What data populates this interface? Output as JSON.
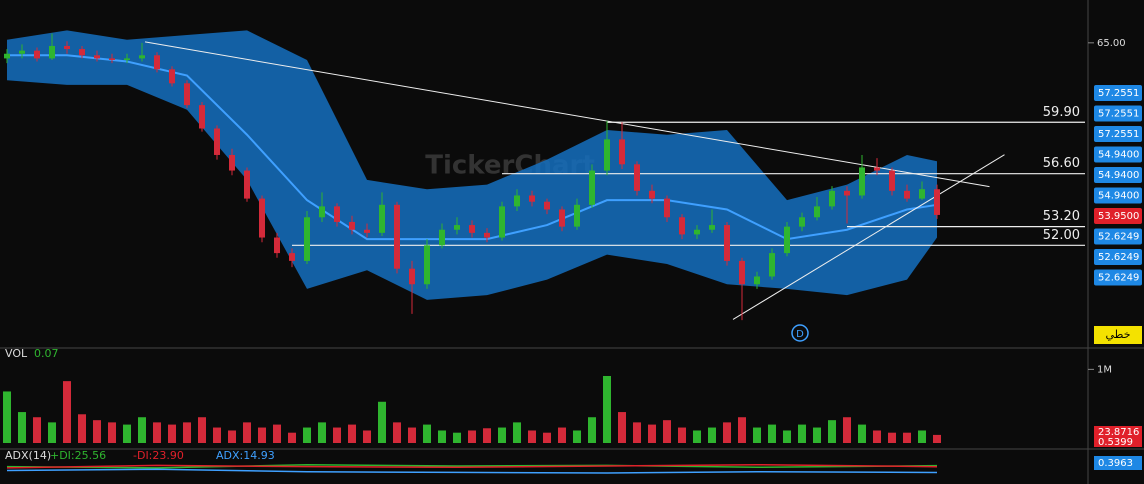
{
  "chart_data": [
    {
      "type": "candlestick",
      "watermark": "TickerChart",
      "ylim": [
        45.6,
        67.75
      ],
      "yticks": [
        {
          "value": 65,
          "label": "65.00"
        }
      ],
      "up_color": "#2fb52f",
      "down_color": "#d42a3a",
      "candles": [
        [
          64.0,
          64.6,
          63.7,
          64.3
        ],
        [
          64.3,
          64.9,
          64.0,
          64.5
        ],
        [
          64.5,
          64.7,
          63.8,
          64.0
        ],
        [
          64.0,
          65.6,
          63.9,
          64.8
        ],
        [
          64.8,
          65.1,
          64.3,
          64.6
        ],
        [
          64.6,
          64.8,
          64.0,
          64.2
        ],
        [
          64.2,
          64.5,
          63.8,
          64.0
        ],
        [
          64.0,
          64.3,
          63.7,
          63.9
        ],
        [
          63.9,
          64.3,
          63.7,
          64.0
        ],
        [
          64.0,
          65.0,
          63.8,
          64.2
        ],
        [
          64.2,
          64.4,
          63.1,
          63.3
        ],
        [
          63.3,
          63.5,
          62.2,
          62.4
        ],
        [
          62.4,
          62.6,
          60.8,
          61.0
        ],
        [
          61.0,
          61.2,
          59.3,
          59.5
        ],
        [
          59.5,
          59.7,
          57.5,
          57.8
        ],
        [
          57.8,
          58.2,
          56.5,
          56.8
        ],
        [
          56.8,
          57.0,
          54.8,
          55.0
        ],
        [
          55.0,
          55.2,
          52.2,
          52.5
        ],
        [
          52.5,
          52.8,
          51.2,
          51.5
        ],
        [
          51.5,
          51.8,
          50.6,
          51.0
        ],
        [
          51.0,
          54.2,
          50.8,
          53.8
        ],
        [
          53.8,
          55.4,
          53.5,
          54.5
        ],
        [
          54.5,
          54.7,
          53.2,
          53.5
        ],
        [
          53.5,
          53.9,
          52.7,
          53.0
        ],
        [
          53.0,
          53.4,
          52.5,
          52.8
        ],
        [
          52.8,
          55.4,
          52.6,
          54.6
        ],
        [
          54.6,
          54.8,
          50.2,
          50.5
        ],
        [
          50.5,
          51.0,
          47.6,
          49.5
        ],
        [
          49.5,
          52.4,
          49.2,
          52.0
        ],
        [
          52.0,
          53.4,
          51.8,
          53.0
        ],
        [
          53.0,
          53.8,
          52.7,
          53.3
        ],
        [
          53.3,
          53.6,
          52.5,
          52.8
        ],
        [
          52.8,
          53.1,
          52.2,
          52.5
        ],
        [
          52.5,
          54.8,
          52.3,
          54.5
        ],
        [
          54.5,
          55.6,
          54.2,
          55.2
        ],
        [
          55.2,
          55.5,
          54.5,
          54.8
        ],
        [
          54.8,
          55.0,
          54.0,
          54.3
        ],
        [
          54.3,
          54.5,
          52.9,
          53.2
        ],
        [
          53.2,
          55.0,
          53.0,
          54.6
        ],
        [
          54.6,
          57.2,
          54.4,
          56.8
        ],
        [
          56.8,
          60.0,
          56.5,
          58.8
        ],
        [
          58.8,
          59.9,
          56.9,
          57.2
        ],
        [
          57.2,
          57.4,
          55.2,
          55.5
        ],
        [
          55.5,
          55.9,
          54.7,
          55.0
        ],
        [
          55.0,
          55.2,
          53.5,
          53.8
        ],
        [
          53.8,
          54.0,
          52.4,
          52.7
        ],
        [
          52.7,
          53.3,
          52.4,
          53.0
        ],
        [
          53.0,
          54.3,
          52.8,
          53.3
        ],
        [
          53.3,
          53.5,
          50.7,
          51.0
        ],
        [
          51.0,
          51.2,
          47.2,
          49.5
        ],
        [
          49.5,
          50.3,
          49.2,
          50.0
        ],
        [
          50.0,
          51.8,
          49.8,
          51.5
        ],
        [
          51.5,
          53.5,
          51.3,
          53.2
        ],
        [
          53.2,
          54.1,
          52.9,
          53.8
        ],
        [
          53.8,
          55.1,
          53.6,
          54.5
        ],
        [
          54.5,
          55.8,
          54.3,
          55.5
        ],
        [
          55.5,
          55.8,
          53.4,
          55.2
        ],
        [
          55.2,
          57.8,
          55.0,
          57.0
        ],
        [
          57.0,
          57.6,
          56.5,
          56.8
        ],
        [
          56.8,
          57.0,
          55.2,
          55.5
        ],
        [
          55.5,
          55.9,
          54.8,
          55.0
        ],
        [
          55.0,
          56.1,
          54.9,
          55.6
        ],
        [
          55.6,
          55.9,
          53.7,
          53.95
        ]
      ],
      "bands": {
        "x": [
          0,
          4,
          8,
          12,
          16,
          20,
          24,
          28,
          32,
          36,
          40,
          44,
          48,
          52,
          56,
          60,
          62
        ],
        "upper": [
          65.2,
          65.8,
          65.2,
          65.5,
          65.8,
          63.9,
          56.2,
          55.6,
          55.9,
          57.5,
          59.4,
          59.1,
          59.4,
          54.9,
          55.9,
          57.8,
          57.4
        ],
        "middle": [
          64.2,
          64.2,
          63.8,
          62.9,
          59.1,
          54.9,
          52.4,
          52.4,
          52.4,
          53.3,
          54.9,
          54.9,
          54.3,
          52.4,
          53.0,
          54.3,
          54.6
        ],
        "lower": [
          62.6,
          62.3,
          62.3,
          60.7,
          56.2,
          49.2,
          50.4,
          48.5,
          48.8,
          49.8,
          51.4,
          50.8,
          49.5,
          49.2,
          48.8,
          49.8,
          52.5
        ],
        "fill_color": "#1570c0",
        "middle_color": "#3fa0ff"
      },
      "levels": [
        {
          "value": 59.9,
          "label": "59.90",
          "from": 40
        },
        {
          "value": 56.6,
          "label": "56.60",
          "from": 33
        },
        {
          "value": 53.2,
          "label": "53.20",
          "from": 56
        },
        {
          "value": 52.0,
          "label": "52.00",
          "from": 19
        }
      ],
      "trendlines": [
        {
          "x": [
            9.2,
            65.5
          ],
          "y": [
            65.06,
            55.77
          ]
        },
        {
          "x": [
            48.4,
            66.5
          ],
          "y": [
            47.24,
            57.82
          ]
        }
      ],
      "badges": [
        {
          "value": 57.2551,
          "color": "#1e88e5"
        },
        {
          "value": 57.2551,
          "color": "#1e88e5"
        },
        {
          "value": 57.2551,
          "color": "#1e88e5"
        },
        {
          "value": 54.94,
          "label": "54.9400",
          "color": "#1e88e5"
        },
        {
          "value": 54.94,
          "label": "54.9400",
          "color": "#1e88e5"
        },
        {
          "value": 54.94,
          "label": "54.9400",
          "color": "#1e88e5"
        },
        {
          "value": 53.95,
          "label": "53.9500",
          "color": "#e0202a"
        },
        {
          "value": 52.6249,
          "color": "#1e88e5"
        },
        {
          "value": 52.6249,
          "color": "#1e88e5"
        },
        {
          "value": 52.6249,
          "color": "#1e88e5"
        }
      ],
      "marker": "D",
      "button": "خطي"
    },
    {
      "type": "bar",
      "title": "VOL",
      "value_label": "0.07",
      "ylim": [
        0,
        1100000
      ],
      "yticks": [
        {
          "value": 1000000,
          "label": "1M"
        }
      ],
      "values": [
        700000,
        420000,
        350000,
        280000,
        840000,
        390000,
        310000,
        280000,
        250000,
        350000,
        280000,
        250000,
        280000,
        350000,
        210000,
        170000,
        280000,
        210000,
        250000,
        140000,
        210000,
        280000,
        210000,
        250000,
        170000,
        560000,
        280000,
        210000,
        250000,
        170000,
        140000,
        170000,
        200000,
        210000,
        280000,
        170000,
        140000,
        210000,
        170000,
        350000,
        910000,
        420000,
        280000,
        250000,
        310000,
        210000,
        170000,
        210000,
        280000,
        350000,
        210000,
        250000,
        170000,
        250000,
        210000,
        310000,
        350000,
        250000,
        170000,
        140000,
        140000,
        170000,
        110000
      ],
      "badges": [
        {
          "value": 23.8716,
          "color": "#e0202a"
        },
        {
          "value": 0.5399,
          "color": "#e0202a"
        }
      ]
    },
    {
      "type": "line",
      "title": "ADX(14)",
      "ylim": [
        0,
        50
      ],
      "x": [
        0,
        10,
        20,
        30,
        40,
        50,
        62
      ],
      "series": [
        {
          "name": "+DI:25.56",
          "color": "#2fb52f",
          "values": [
            24,
            22,
            27,
            25,
            26,
            23,
            25.56
          ]
        },
        {
          "name": "-DI:23.90",
          "color": "#e0202a",
          "values": [
            22,
            26,
            24,
            23,
            25,
            27,
            23.9
          ]
        },
        {
          "name": "ADX:14.93",
          "color": "#3fa0ff",
          "values": [
            18,
            20,
            16,
            15,
            14,
            16,
            14.93
          ]
        }
      ],
      "badges": [
        {
          "value": 0.3963,
          "color": "#1e88e5"
        }
      ]
    }
  ]
}
